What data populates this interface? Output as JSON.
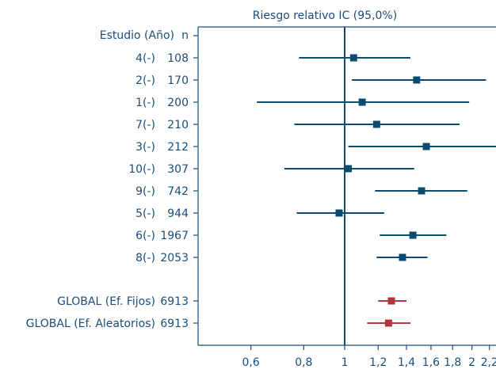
{
  "chart_data": {
    "type": "forest",
    "title": "Riesgo relativo IC (95,0%)",
    "header": {
      "study": "Estudio (Año)",
      "n": "n"
    },
    "xscale": "log",
    "xlim": [
      0.45,
      2.28
    ],
    "reference_line": 1,
    "ticks": [
      {
        "value": 0.6,
        "label": "0,6"
      },
      {
        "value": 0.8,
        "label": "0,8"
      },
      {
        "value": 1.0,
        "label": "1"
      },
      {
        "value": 1.2,
        "label": "1,2"
      },
      {
        "value": 1.4,
        "label": "1,4"
      },
      {
        "value": 1.6,
        "label": "1,6"
      },
      {
        "value": 1.8,
        "label": "1,8"
      },
      {
        "value": 2.0,
        "label": "2"
      },
      {
        "value": 2.2,
        "label": "2,2"
      }
    ],
    "colors": {
      "study": "#0c4a6e",
      "global": "#b0353d",
      "text": "#1a4d7a",
      "axis": "#1a4d7a"
    },
    "studies": [
      {
        "label": "4(-)",
        "n": "108",
        "rr": 1.05,
        "lo": 0.78,
        "hi": 1.43
      },
      {
        "label": "2(-)",
        "n": "170",
        "rr": 1.48,
        "lo": 1.04,
        "hi": 2.16
      },
      {
        "label": "1(-)",
        "n": "200",
        "rr": 1.1,
        "lo": 0.62,
        "hi": 1.97
      },
      {
        "label": "7(-)",
        "n": "210",
        "rr": 1.19,
        "lo": 0.76,
        "hi": 1.87
      },
      {
        "label": "3(-)",
        "n": "212",
        "rr": 1.56,
        "lo": 1.02,
        "hi": 2.35
      },
      {
        "label": "10(-)",
        "n": "307",
        "rr": 1.02,
        "lo": 0.72,
        "hi": 1.46
      },
      {
        "label": "9(-)",
        "n": "742",
        "rr": 1.52,
        "lo": 1.18,
        "hi": 1.95
      },
      {
        "label": "5(-)",
        "n": "944",
        "rr": 0.97,
        "lo": 0.77,
        "hi": 1.24
      },
      {
        "label": "6(-)",
        "n": "1967",
        "rr": 1.45,
        "lo": 1.21,
        "hi": 1.74
      },
      {
        "label": "8(-)",
        "n": "2053",
        "rr": 1.37,
        "lo": 1.19,
        "hi": 1.57
      }
    ],
    "overall": [
      {
        "label": "GLOBAL (Ef. Fijos)",
        "n": "6913",
        "rr": 1.29,
        "lo": 1.2,
        "hi": 1.4
      },
      {
        "label": "GLOBAL (Ef. Aleatorios)",
        "n": "6913",
        "rr": 1.27,
        "lo": 1.13,
        "hi": 1.43
      }
    ]
  }
}
